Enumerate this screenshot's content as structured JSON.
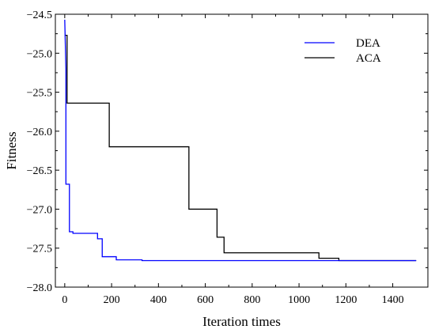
{
  "chart_data": {
    "type": "line",
    "title": "",
    "xlabel": "Iteration times",
    "ylabel": "Fitness",
    "xlim": [
      -40,
      1550
    ],
    "ylim": [
      -28.0,
      -24.5
    ],
    "xticks": [
      0,
      200,
      400,
      600,
      800,
      1000,
      1200,
      1400
    ],
    "yticks": [
      -28.0,
      -27.5,
      -27.0,
      -26.5,
      -26.0,
      -25.5,
      -25.0,
      -24.5
    ],
    "grid": false,
    "legend_position": "top-right",
    "series": [
      {
        "name": "DEA",
        "color": "#0000ff",
        "x": [
          0,
          5,
          5,
          20,
          20,
          35,
          35,
          140,
          140,
          160,
          160,
          220,
          220,
          330,
          330,
          1500
        ],
        "y": [
          -24.57,
          -25.2,
          -26.68,
          -26.68,
          -27.29,
          -27.29,
          -27.31,
          -27.31,
          -27.38,
          -27.38,
          -27.61,
          -27.61,
          -27.65,
          -27.65,
          -27.66,
          -27.66
        ]
      },
      {
        "name": "ACA",
        "color": "#000000",
        "x": [
          0,
          10,
          10,
          190,
          190,
          530,
          530,
          650,
          650,
          680,
          680,
          1085,
          1085,
          1170,
          1170,
          1500
        ],
        "y": [
          -24.77,
          -24.77,
          -25.64,
          -25.64,
          -26.2,
          -26.2,
          -27.0,
          -27.0,
          -27.36,
          -27.36,
          -27.56,
          -27.56,
          -27.63,
          -27.63,
          -27.66,
          -27.66
        ]
      }
    ]
  }
}
